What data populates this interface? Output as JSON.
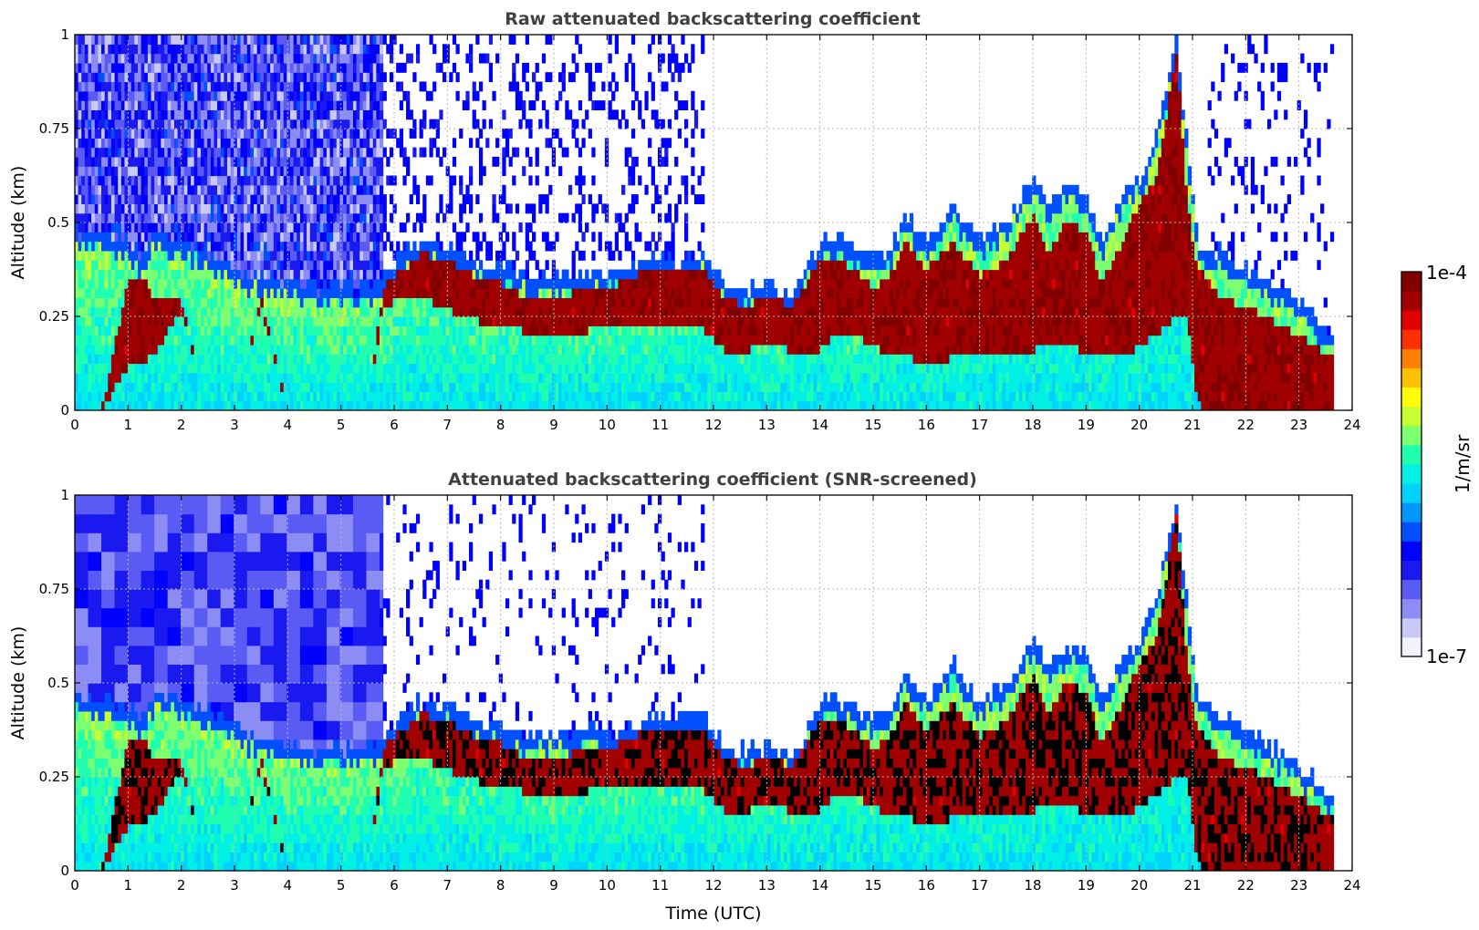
{
  "figure": {
    "colorbar": {
      "max_label": "1e-4",
      "min_label": "1e-7",
      "unit_label": "1/m/sr",
      "colormap": [
        "#f2f2fc",
        "#c9c9f5",
        "#8c8cf5",
        "#5a5af5",
        "#1a1af0",
        "#0000ff",
        "#0050ff",
        "#0096ff",
        "#00d2ff",
        "#00f0e6",
        "#20ffb0",
        "#7cff70",
        "#c8ff30",
        "#ffff00",
        "#ffc000",
        "#ff8000",
        "#ff3000",
        "#e00000",
        "#a00000",
        "#800000"
      ]
    }
  },
  "chart_data": [
    {
      "type": "heatmap",
      "title": "Raw attenuated backscattering coefficient",
      "xlabel": "",
      "ylabel": "Altitude (km)",
      "xlim": [
        0,
        24
      ],
      "ylim": [
        0,
        1
      ],
      "x_ticks": [
        "0",
        "1",
        "2",
        "3",
        "4",
        "5",
        "6",
        "7",
        "8",
        "9",
        "10",
        "11",
        "12",
        "13",
        "14",
        "15",
        "16",
        "17",
        "18",
        "19",
        "20",
        "21",
        "22",
        "23",
        "24"
      ],
      "y_ticks": [
        "0",
        "0.25",
        "0.5",
        "0.75",
        "1"
      ],
      "grid": true,
      "color_scale": "log",
      "color_range": [
        1e-07,
        0.0001
      ],
      "data_end_time": 23.65,
      "noise_above_layer": "dense 0-5.8 h, sparse streaks 5.8-11.8 h, mostly clear 11.8-21.3 h, sparse 21.3-23.65 h",
      "layer_features": {
        "description": "Mixing-layer top altitude (km) and peak-backscatter layer band (km) vs. time (UTC hours)",
        "time": [
          0,
          0.5,
          1.0,
          1.25,
          1.5,
          2.0,
          2.5,
          3.0,
          3.5,
          4.0,
          4.5,
          5.0,
          5.5,
          5.8,
          6.2,
          6.5,
          7.0,
          7.5,
          8.0,
          8.5,
          9.0,
          9.5,
          10.0,
          10.5,
          11.0,
          11.5,
          11.8,
          12.2,
          12.6,
          13.0,
          13.5,
          14.0,
          14.3,
          14.6,
          15.0,
          15.3,
          15.6,
          16.0,
          16.5,
          17.0,
          17.5,
          18.0,
          18.3,
          18.6,
          19.0,
          19.3,
          19.6,
          20.0,
          20.3,
          20.5,
          20.7,
          20.9,
          21.1,
          21.3,
          21.5,
          22.0,
          22.5,
          23.0,
          23.3,
          23.65
        ],
        "layer_top": [
          0.48,
          0.46,
          0.45,
          0.4,
          0.48,
          0.46,
          0.42,
          0.38,
          0.36,
          0.34,
          0.33,
          0.33,
          0.33,
          0.35,
          0.43,
          0.45,
          0.44,
          0.4,
          0.38,
          0.36,
          0.36,
          0.37,
          0.37,
          0.39,
          0.41,
          0.4,
          0.42,
          0.33,
          0.32,
          0.33,
          0.31,
          0.45,
          0.46,
          0.44,
          0.41,
          0.42,
          0.52,
          0.46,
          0.55,
          0.45,
          0.5,
          0.62,
          0.55,
          0.6,
          0.58,
          0.45,
          0.55,
          0.62,
          0.72,
          0.85,
          0.98,
          0.7,
          0.45,
          0.44,
          0.42,
          0.38,
          0.33,
          0.28,
          0.24,
          0.2
        ],
        "peak_top": [
          0,
          0,
          0.34,
          0.36,
          0.3,
          0.3,
          0,
          0,
          0.3,
          0,
          0,
          0,
          0,
          0.33,
          0.38,
          0.42,
          0.4,
          0.36,
          0.34,
          0.3,
          0.3,
          0.32,
          0.32,
          0.36,
          0.38,
          0.37,
          0.38,
          0.3,
          0.28,
          0.3,
          0.28,
          0.4,
          0.41,
          0.38,
          0.33,
          0.35,
          0.45,
          0.38,
          0.45,
          0.36,
          0.4,
          0.52,
          0.42,
          0.5,
          0.48,
          0.34,
          0.42,
          0.55,
          0.62,
          0.78,
          0.95,
          0.55,
          0.38,
          0.35,
          0.3,
          0.28,
          0.24,
          0.2,
          0.17,
          0.15
        ],
        "peak_bottom": [
          0,
          0,
          0.12,
          0.12,
          0.15,
          0.27,
          0,
          0,
          0.28,
          0,
          0,
          0,
          0,
          0.28,
          0.3,
          0.3,
          0.27,
          0.24,
          0.22,
          0.21,
          0.2,
          0.21,
          0.22,
          0.22,
          0.23,
          0.22,
          0.22,
          0.16,
          0.16,
          0.17,
          0.16,
          0.16,
          0.2,
          0.21,
          0.17,
          0.15,
          0.15,
          0.12,
          0.14,
          0.14,
          0.15,
          0.16,
          0.18,
          0.18,
          0.15,
          0.14,
          0.14,
          0.17,
          0.2,
          0.22,
          0.25,
          0.25,
          0.02,
          0.0,
          0.0,
          0.0,
          0.0,
          0.0,
          0.0,
          0.0
        ]
      }
    },
    {
      "type": "heatmap",
      "title": "Attenuated backscattering coefficient (SNR-screened)",
      "xlabel": "Time (UTC)",
      "ylabel": "Altitude (km)",
      "xlim": [
        0,
        24
      ],
      "ylim": [
        0,
        1
      ],
      "x_ticks": [
        "0",
        "1",
        "2",
        "3",
        "4",
        "5",
        "6",
        "7",
        "8",
        "9",
        "10",
        "11",
        "12",
        "13",
        "14",
        "15",
        "16",
        "17",
        "18",
        "19",
        "20",
        "21",
        "22",
        "23",
        "24"
      ],
      "y_ticks": [
        "0",
        "0.25",
        "0.5",
        "0.75",
        "1"
      ],
      "grid": true,
      "color_scale": "log",
      "color_range": [
        1e-07,
        0.0001
      ],
      "data_end_time": 23.65,
      "saturated_color": "#000000",
      "noise_above_layer": "smooth blocky fill 0-5.8 h, faint plumes 5.8-11.8 h, clear 11.8-23.65 h"
    }
  ]
}
